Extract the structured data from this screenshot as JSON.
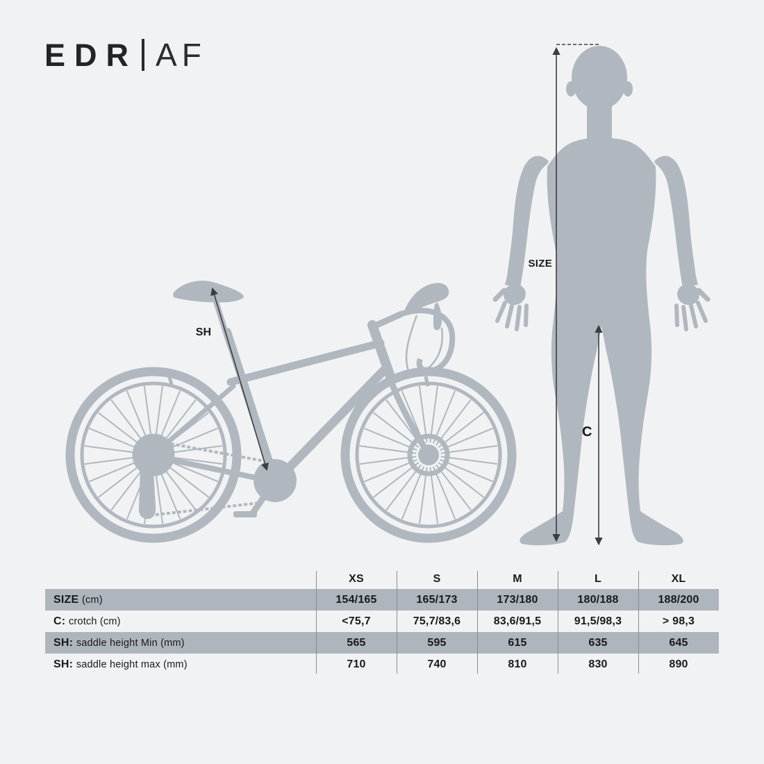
{
  "logo": {
    "brand": "EDR",
    "separator": "|",
    "model": "AF"
  },
  "diagram": {
    "size_label": "SIZE",
    "crotch_label": "C",
    "saddle_height_label": "SH",
    "colors": {
      "background": "#f1f2f3",
      "silhouette": "#b0b7bf",
      "table_row_highlight": "#aeb5bc",
      "measure_line": "#3a3e42",
      "text": "#17191c"
    }
  },
  "size_table": {
    "columns": [
      "XS",
      "S",
      "M",
      "L",
      "XL"
    ],
    "rows": [
      {
        "label": "SIZE",
        "label_detail": "(cm)",
        "highlight": true,
        "values": [
          "154/165",
          "165/173",
          "173/180",
          "180/188",
          "188/200"
        ]
      },
      {
        "label": "C:",
        "label_detail": "crotch (cm)",
        "highlight": false,
        "values": [
          "<75,7",
          "75,7/83,6",
          "83,6/91,5",
          "91,5/98,3",
          "> 98,3"
        ]
      },
      {
        "label": "SH:",
        "label_detail": "saddle height Min (mm)",
        "highlight": true,
        "values": [
          "565",
          "595",
          "615",
          "635",
          "645"
        ]
      },
      {
        "label": "SH:",
        "label_detail": "saddle height max (mm)",
        "highlight": false,
        "values": [
          "710",
          "740",
          "810",
          "830",
          "890"
        ]
      }
    ]
  }
}
